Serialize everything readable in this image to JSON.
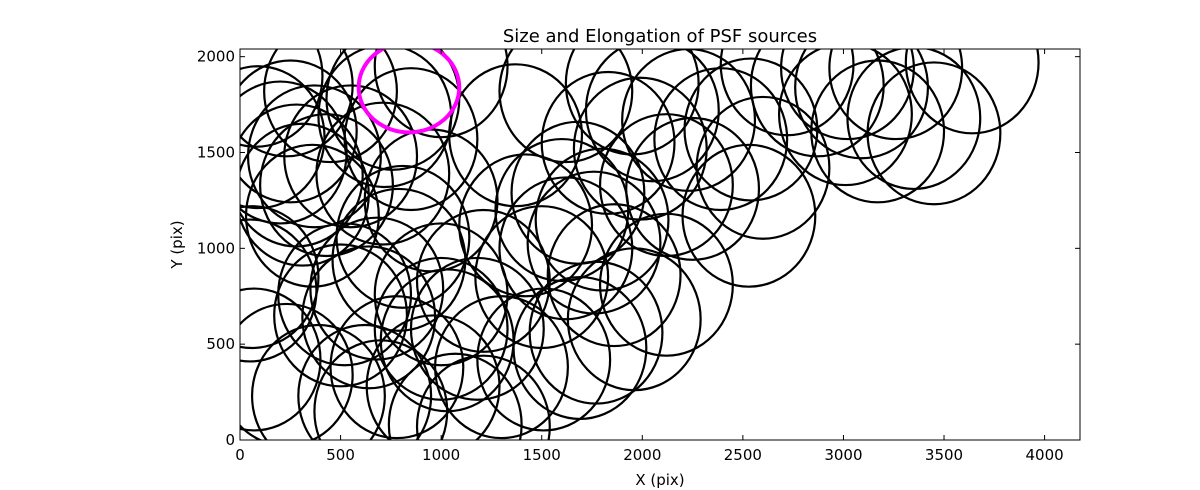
{
  "chart_data": {
    "type": "scatter",
    "marker": "ellipse",
    "title": "Size and Elongation of PSF sources",
    "xlabel": "X (pix)",
    "ylabel": "Y (pix)",
    "xlim": [
      0,
      4176
    ],
    "ylim": [
      0,
      2040
    ],
    "xticks": [
      0,
      500,
      1000,
      1500,
      2000,
      2500,
      3000,
      3500,
      4000
    ],
    "yticks": [
      0,
      500,
      1000,
      1500,
      2000
    ],
    "colors": {
      "source": "#000000",
      "highlight": "#ff00ff"
    },
    "highlight": {
      "x": 840,
      "y": 1840,
      "width": 500,
      "height": 470
    },
    "sources": [
      {
        "x": 80,
        "y": 1900
      },
      {
        "x": 230,
        "y": 1850
      },
      {
        "x": 450,
        "y": 1820
      },
      {
        "x": 760,
        "y": 1780
      },
      {
        "x": 1000,
        "y": 1950
      },
      {
        "x": 90,
        "y": 1580
      },
      {
        "x": 250,
        "y": 1610
      },
      {
        "x": 370,
        "y": 1480
      },
      {
        "x": 200,
        "y": 1500
      },
      {
        "x": 280,
        "y": 1380
      },
      {
        "x": 430,
        "y": 1330
      },
      {
        "x": 310,
        "y": 1280
      },
      {
        "x": 360,
        "y": 1170
      },
      {
        "x": 550,
        "y": 1480
      },
      {
        "x": 710,
        "y": 1390
      },
      {
        "x": 850,
        "y": 1570
      },
      {
        "x": 950,
        "y": 1250
      },
      {
        "x": 720,
        "y": 1690
      },
      {
        "x": 810,
        "y": 1060
      },
      {
        "x": 790,
        "y": 940
      },
      {
        "x": 60,
        "y": 850
      },
      {
        "x": 50,
        "y": 780
      },
      {
        "x": 520,
        "y": 760
      },
      {
        "x": 680,
        "y": 790
      },
      {
        "x": 500,
        "y": 650
      },
      {
        "x": 640,
        "y": 640
      },
      {
        "x": 1000,
        "y": 760
      },
      {
        "x": 1030,
        "y": 520
      },
      {
        "x": 1000,
        "y": 580
      },
      {
        "x": 1210,
        "y": 830
      },
      {
        "x": 1180,
        "y": 580
      },
      {
        "x": 70,
        "y": 420
      },
      {
        "x": 230,
        "y": 340
      },
      {
        "x": 390,
        "y": 230
      },
      {
        "x": 620,
        "y": 230
      },
      {
        "x": 780,
        "y": 380
      },
      {
        "x": 700,
        "y": 150
      },
      {
        "x": 960,
        "y": 280
      },
      {
        "x": 1070,
        "y": 80
      },
      {
        "x": 1210,
        "y": 70
      },
      {
        "x": 1300,
        "y": 380
      },
      {
        "x": 1510,
        "y": 420
      },
      {
        "x": 1690,
        "y": 480
      },
      {
        "x": 1770,
        "y": 560
      },
      {
        "x": 1960,
        "y": 630
      },
      {
        "x": 2120,
        "y": 810
      },
      {
        "x": 1860,
        "y": 860
      },
      {
        "x": 1500,
        "y": 850
      },
      {
        "x": 1620,
        "y": 1000
      },
      {
        "x": 1420,
        "y": 1120
      },
      {
        "x": 1600,
        "y": 1200
      },
      {
        "x": 1800,
        "y": 1150
      },
      {
        "x": 1760,
        "y": 1030
      },
      {
        "x": 1680,
        "y": 1290
      },
      {
        "x": 1370,
        "y": 1590
      },
      {
        "x": 1620,
        "y": 1820
      },
      {
        "x": 1830,
        "y": 1550
      },
      {
        "x": 1990,
        "y": 1520
      },
      {
        "x": 2050,
        "y": 1720
      },
      {
        "x": 2230,
        "y": 1670
      },
      {
        "x": 2120,
        "y": 1330
      },
      {
        "x": 2250,
        "y": 1310
      },
      {
        "x": 2390,
        "y": 1570
      },
      {
        "x": 2540,
        "y": 1620
      },
      {
        "x": 2600,
        "y": 1420
      },
      {
        "x": 2530,
        "y": 1170
      },
      {
        "x": 2720,
        "y": 1960
      },
      {
        "x": 2870,
        "y": 1850
      },
      {
        "x": 3020,
        "y": 1940
      },
      {
        "x": 3010,
        "y": 1700
      },
      {
        "x": 3090,
        "y": 1840
      },
      {
        "x": 3170,
        "y": 1610
      },
      {
        "x": 3350,
        "y": 1680
      },
      {
        "x": 3450,
        "y": 1600
      },
      {
        "x": 3640,
        "y": 1970
      },
      {
        "x": 3260,
        "y": 1940
      },
      {
        "x": 1950,
        "y": 1860
      }
    ]
  }
}
